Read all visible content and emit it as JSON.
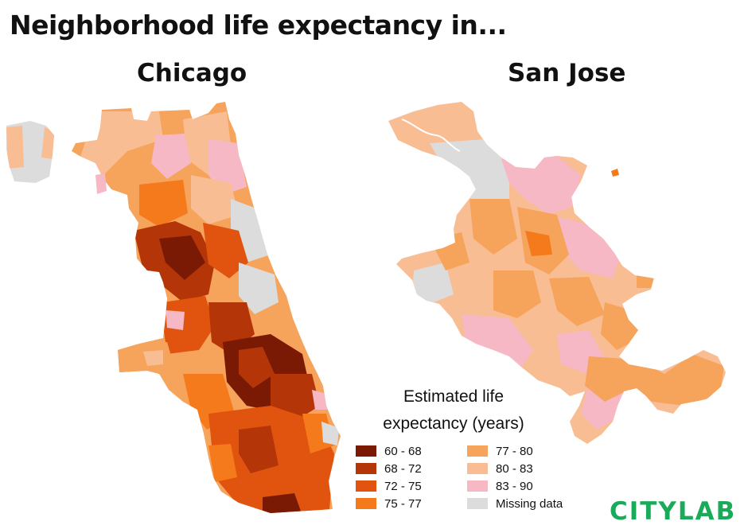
{
  "headline": "Neighborhood life expectancy in...",
  "maps": [
    {
      "name": "Chicago"
    },
    {
      "name": "San Jose"
    }
  ],
  "legend": {
    "title_line1": "Estimated life",
    "title_line2": "expectancy (years)",
    "items": [
      {
        "label": "60 - 68",
        "color": "#7a1a05"
      },
      {
        "label": "68 - 72",
        "color": "#b43608"
      },
      {
        "label": "72 - 75",
        "color": "#e05410"
      },
      {
        "label": "75 - 77",
        "color": "#f57a1c"
      },
      {
        "label": "77 - 80",
        "color": "#f6a35b"
      },
      {
        "label": "80 - 83",
        "color": "#f9bd94"
      },
      {
        "label": "83 - 90",
        "color": "#f6b8c4"
      },
      {
        "label": "Missing data",
        "color": "#dcdcdc"
      }
    ]
  },
  "brand": {
    "logo_text": "CITYLAB",
    "color": "#1aab5a"
  }
}
